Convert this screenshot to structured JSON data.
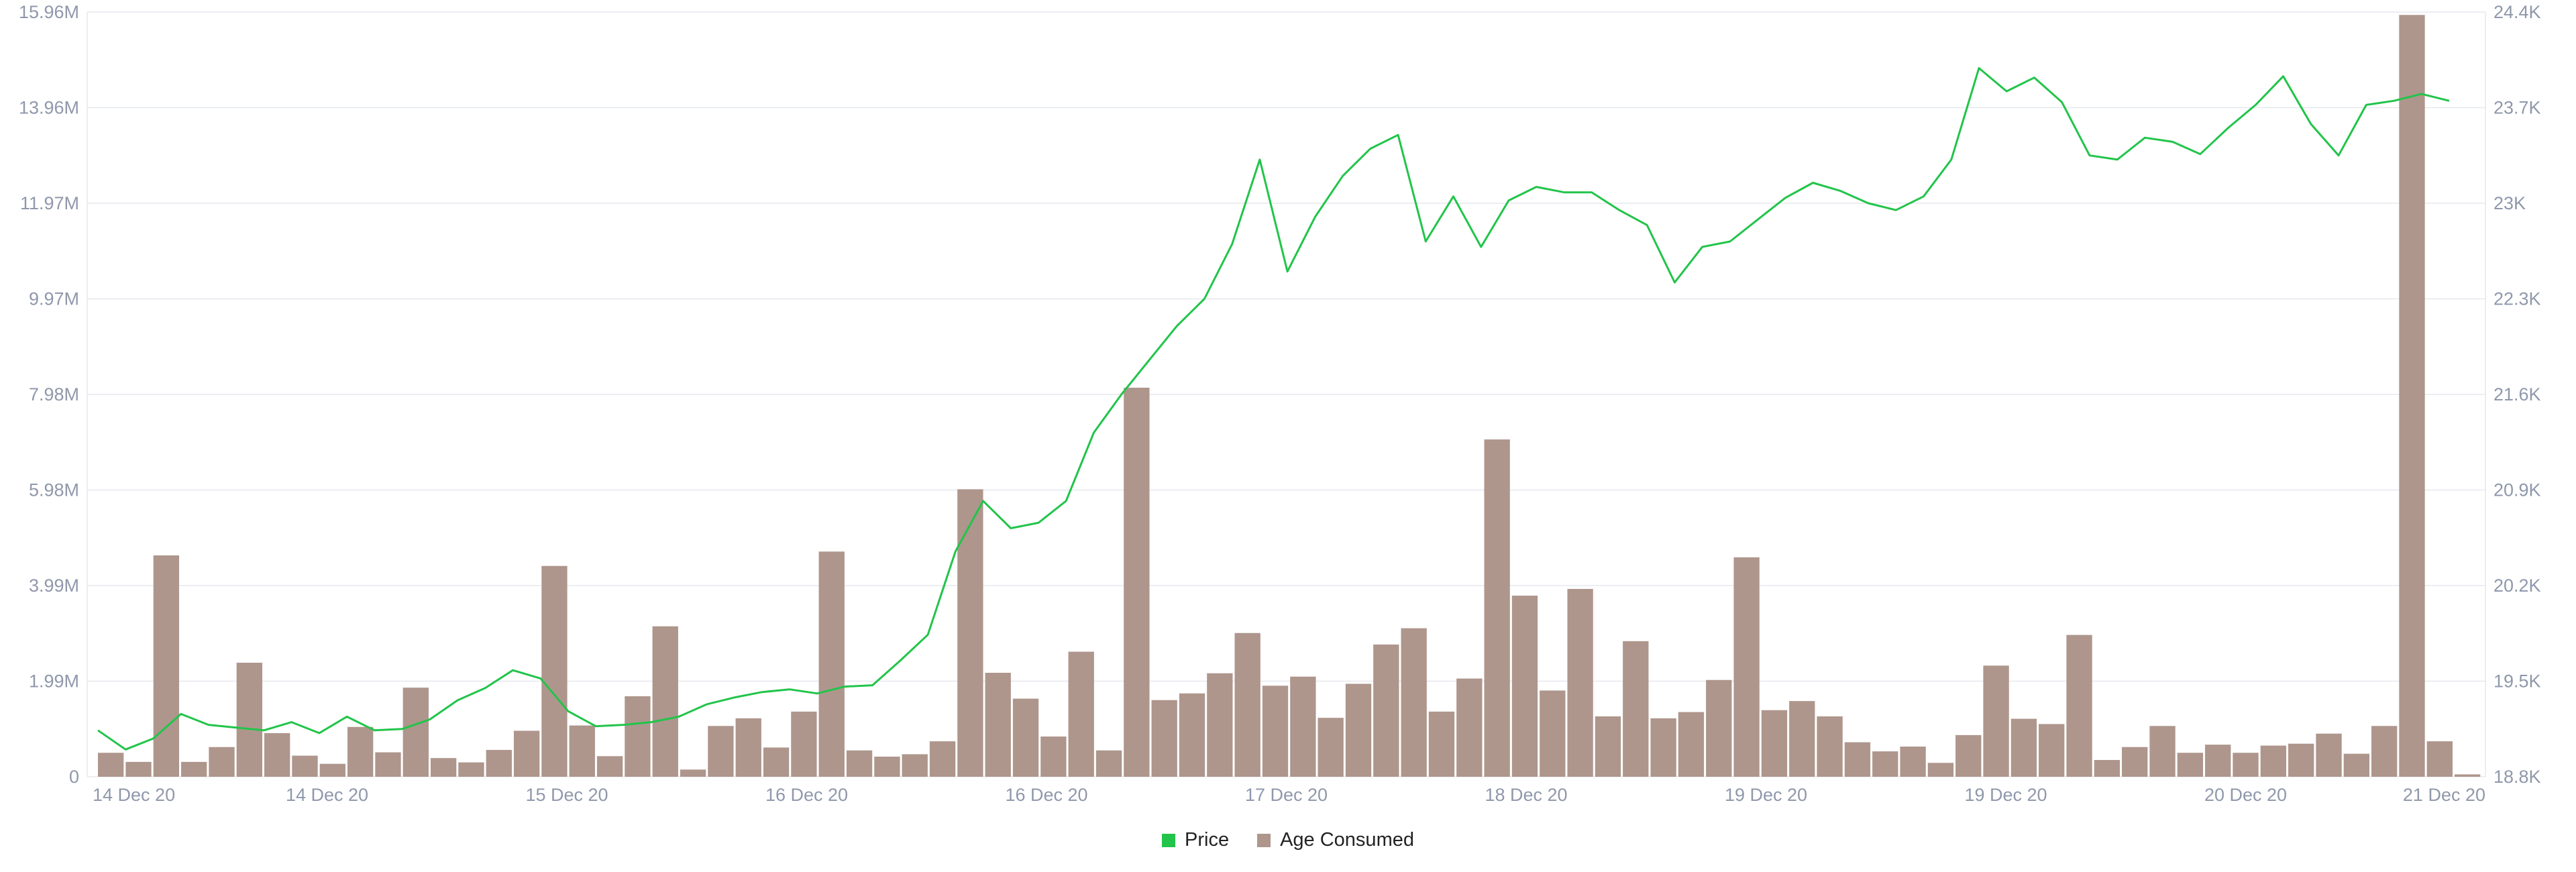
{
  "colors": {
    "price": "#22c44a",
    "age_consumed": "#ae968d",
    "axis_text": "#8f98ab",
    "grid": "#e6e8ee"
  },
  "legend": {
    "price_label": "Price",
    "age_label": "Age Consumed"
  },
  "chart_data": {
    "type": "bar+line",
    "title": "",
    "xlabel": "",
    "ylabel": "",
    "x_ticks": [
      "14 Dec 20",
      "14 Dec 20",
      "15 Dec 20",
      "16 Dec 20",
      "16 Dec 20",
      "17 Dec 20",
      "18 Dec 20",
      "19 Dec 20",
      "19 Dec 20",
      "20 Dec 20",
      "21 Dec 20"
    ],
    "y_left_ticks": [
      "0",
      "1.99M",
      "3.99M",
      "5.98M",
      "7.98M",
      "9.97M",
      "11.97M",
      "13.96M",
      "15.96M"
    ],
    "y_right_ticks": [
      "18.8K",
      "19.5K",
      "20.2K",
      "20.9K",
      "21.6K",
      "22.3K",
      "23K",
      "23.7K",
      "24.4K"
    ],
    "y_left_range": [
      0,
      15960000
    ],
    "y_right_range": [
      18800,
      24400
    ],
    "series": [
      {
        "name": "Age Consumed",
        "type": "bar",
        "axis": "left",
        "values": [
          0.5,
          0.31,
          4.62,
          0.31,
          0.62,
          2.38,
          0.91,
          0.44,
          0.27,
          1.04,
          0.51,
          1.86,
          0.39,
          0.3,
          0.56,
          0.96,
          4.4,
          1.07,
          0.43,
          1.68,
          3.14,
          0.15,
          1.06,
          1.22,
          0.61,
          1.36,
          4.7,
          0.55,
          0.42,
          0.47,
          0.74,
          6.0,
          2.17,
          1.63,
          0.84,
          2.61,
          0.55,
          8.12,
          1.6,
          1.74,
          2.16,
          3.0,
          1.9,
          2.09,
          1.23,
          1.94,
          2.76,
          3.1,
          1.36,
          2.05,
          7.04,
          3.78,
          1.8,
          3.92,
          1.26,
          2.83,
          1.22,
          1.35,
          2.02,
          4.58,
          1.39,
          1.58,
          1.26,
          0.72,
          0.53,
          0.63,
          0.29,
          0.87,
          2.32,
          1.21,
          1.1,
          2.96,
          0.35,
          0.62,
          1.06,
          0.5,
          0.67,
          0.5,
          0.65,
          0.69,
          0.9,
          0.48,
          1.06,
          15.9,
          0.74,
          0.05
        ]
      },
      {
        "name": "Price",
        "type": "line",
        "axis": "right",
        "points": [
          [
            0,
            19.14
          ],
          [
            1,
            19.0
          ],
          [
            2,
            19.08
          ],
          [
            3,
            19.26
          ],
          [
            4,
            19.18
          ],
          [
            5,
            19.16
          ],
          [
            6,
            19.14
          ],
          [
            7,
            19.2
          ],
          [
            8,
            19.12
          ],
          [
            9,
            19.24
          ],
          [
            10,
            19.14
          ],
          [
            11,
            19.15
          ],
          [
            12,
            19.22
          ],
          [
            13,
            19.36
          ],
          [
            14,
            19.45
          ],
          [
            15,
            19.58
          ],
          [
            16,
            19.52
          ],
          [
            17,
            19.28
          ],
          [
            18,
            19.17
          ],
          [
            19,
            19.18
          ],
          [
            20,
            19.2
          ],
          [
            21,
            19.24
          ],
          [
            22,
            19.33
          ],
          [
            23,
            19.38
          ],
          [
            24,
            19.42
          ],
          [
            25,
            19.44
          ],
          [
            26,
            19.41
          ],
          [
            27,
            19.46
          ],
          [
            28,
            19.47
          ],
          [
            29,
            19.65
          ],
          [
            30,
            19.84
          ],
          [
            31,
            20.45
          ],
          [
            32,
            20.82
          ],
          [
            33,
            20.62
          ],
          [
            34,
            20.66
          ],
          [
            35,
            20.82
          ],
          [
            36,
            21.32
          ],
          [
            37,
            21.6
          ],
          [
            38,
            21.85
          ],
          [
            39,
            22.1
          ],
          [
            40,
            22.3
          ],
          [
            41,
            22.7
          ],
          [
            42,
            23.32
          ],
          [
            43,
            22.5
          ],
          [
            44,
            22.9
          ],
          [
            45,
            23.2
          ],
          [
            46,
            23.4
          ],
          [
            47,
            23.5
          ],
          [
            48,
            22.72
          ],
          [
            49,
            23.05
          ],
          [
            50,
            22.68
          ],
          [
            51,
            23.02
          ],
          [
            52,
            23.12
          ],
          [
            53,
            23.08
          ],
          [
            54,
            23.08
          ],
          [
            55,
            22.95
          ],
          [
            56,
            22.84
          ],
          [
            57,
            22.42
          ],
          [
            58,
            22.68
          ],
          [
            59,
            22.72
          ],
          [
            60,
            22.88
          ],
          [
            61,
            23.04
          ],
          [
            62,
            23.15
          ],
          [
            63,
            23.09
          ],
          [
            64,
            23.0
          ],
          [
            65,
            22.95
          ],
          [
            66,
            23.05
          ],
          [
            67,
            23.32
          ],
          [
            68,
            23.99
          ],
          [
            69,
            23.82
          ],
          [
            70,
            23.92
          ],
          [
            71,
            23.74
          ],
          [
            72,
            23.35
          ],
          [
            73,
            23.32
          ],
          [
            74,
            23.48
          ],
          [
            75,
            23.45
          ],
          [
            76,
            23.36
          ],
          [
            77,
            23.55
          ],
          [
            78,
            23.72
          ],
          [
            79,
            23.93
          ],
          [
            80,
            23.58
          ],
          [
            81,
            23.35
          ],
          [
            82,
            23.72
          ],
          [
            83,
            23.75
          ],
          [
            84,
            23.8
          ],
          [
            85,
            23.75
          ]
        ]
      }
    ]
  }
}
